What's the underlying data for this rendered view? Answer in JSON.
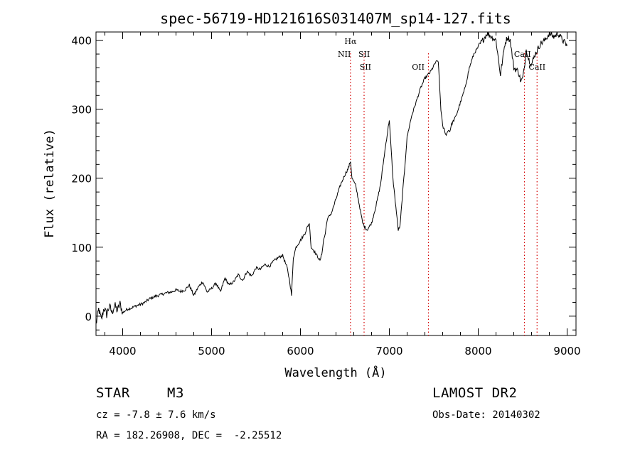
{
  "chart_data": {
    "type": "line",
    "title": "spec-56719-HD121616S031407M_sp14-127.fits",
    "xlabel": "Wavelength (Å)",
    "ylabel": "Flux (relative)",
    "xlim": [
      3700,
      9100
    ],
    "ylim": [
      -28,
      412
    ],
    "xticks": [
      4000,
      5000,
      6000,
      7000,
      8000,
      9000
    ],
    "yticks": [
      0,
      100,
      200,
      300,
      400
    ],
    "grid": false,
    "series": [
      {
        "x": [
          3700,
          3730,
          3760,
          3790,
          3820,
          3850,
          3880,
          3910,
          3940,
          3970,
          4000,
          4050,
          4100,
          4150,
          4200,
          4250,
          4300,
          4350,
          4400,
          4450,
          4500,
          4550,
          4600,
          4650,
          4700,
          4750,
          4800,
          4850,
          4900,
          4950,
          5000,
          5050,
          5100,
          5150,
          5200,
          5250,
          5300,
          5350,
          5400,
          5450,
          5500,
          5550,
          5600,
          5650,
          5700,
          5750,
          5800,
          5850,
          5880,
          5900,
          5920,
          5950,
          6000,
          6050,
          6080,
          6100,
          6120,
          6150,
          6200,
          6220,
          6240,
          6260,
          6280,
          6300,
          6350,
          6400,
          6450,
          6500,
          6540,
          6563,
          6580,
          6600,
          6620,
          6650,
          6700,
          6720,
          6750,
          6800,
          6850,
          6900,
          6950,
          7000,
          7040,
          7060,
          7080,
          7100,
          7120,
          7150,
          7170,
          7200,
          7250,
          7300,
          7350,
          7400,
          7450,
          7480,
          7520,
          7550,
          7580,
          7600,
          7620,
          7640,
          7660,
          7680,
          7700,
          7750,
          7800,
          7850,
          7900,
          7950,
          8000,
          8050,
          8100,
          8150,
          8200,
          8250,
          8300,
          8330,
          8360,
          8400,
          8450,
          8480,
          8500,
          8520,
          8540,
          8560,
          8600,
          8640,
          8662,
          8700,
          8750,
          8800,
          8850,
          8900,
          8950,
          9000
        ],
        "y": [
          -12,
          10,
          -5,
          12,
          2,
          15,
          5,
          16,
          8,
          18,
          5,
          10,
          12,
          15,
          17,
          20,
          25,
          28,
          30,
          32,
          34,
          35,
          38,
          36,
          38,
          45,
          30,
          42,
          50,
          35,
          40,
          48,
          35,
          55,
          45,
          50,
          60,
          52,
          65,
          58,
          70,
          68,
          75,
          72,
          80,
          85,
          88,
          70,
          50,
          30,
          85,
          100,
          110,
          120,
          130,
          135,
          100,
          95,
          85,
          80,
          90,
          110,
          120,
          140,
          150,
          170,
          190,
          205,
          215,
          225,
          200,
          195,
          190,
          170,
          135,
          130,
          125,
          135,
          160,
          190,
          240,
          285,
          200,
          175,
          150,
          125,
          130,
          180,
          210,
          260,
          290,
          310,
          330,
          345,
          352,
          358,
          368,
          370,
          300,
          275,
          270,
          262,
          270,
          268,
          278,
          290,
          310,
          330,
          360,
          380,
          390,
          400,
          410,
          405,
          400,
          350,
          395,
          405,
          400,
          360,
          355,
          340,
          345,
          360,
          390,
          375,
          365,
          380,
          385,
          395,
          400,
          410,
          405,
          410,
          400,
          392
        ]
      }
    ],
    "annotations": [
      {
        "label": "Hα",
        "x": 6563,
        "row": 1
      },
      {
        "label": "NII",
        "x": 6583,
        "row": 2,
        "side": "left"
      },
      {
        "label": "SII",
        "x": 6716,
        "row": 2,
        "side": "right"
      },
      {
        "label": "SII",
        "x": 6731,
        "row": 3
      },
      {
        "label": "OII",
        "x": 7325,
        "row": 3
      },
      {
        "label": "CaII",
        "x": 8498,
        "row": 2
      },
      {
        "label": "CaII",
        "x": 8662,
        "row": 3
      }
    ],
    "marker_lines": [
      6563,
      6716,
      7440,
      8520,
      8662
    ],
    "colors": {
      "spectrum": "#000000",
      "marker": "#d40000",
      "axis": "#000000"
    }
  },
  "info": {
    "object_type": "STAR",
    "subclass": "M3",
    "survey": "LAMOST DR2",
    "cz": "cz = -7.8 ± 7.6 km/s",
    "obs_date": "Obs-Date: 20140302",
    "radec": "RA = 182.26908, DEC =  -2.25512"
  }
}
